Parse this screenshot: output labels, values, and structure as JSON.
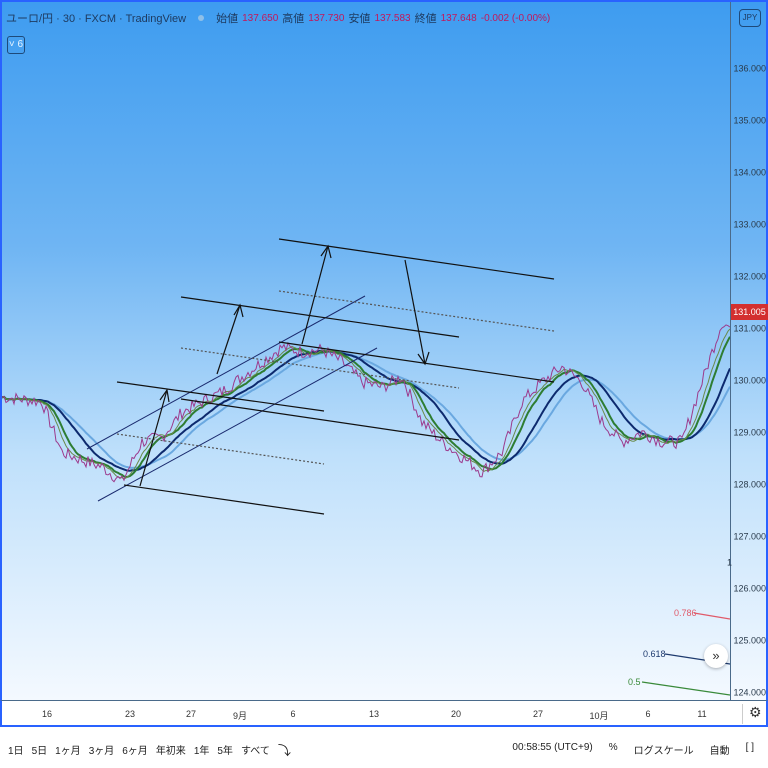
{
  "header": {
    "symbol": "ユーロ/円 · 30 · FXCM · TradingView",
    "open_label": "始値",
    "open": "137.650",
    "high_label": "高値",
    "high": "137.730",
    "low_label": "安値",
    "low": "137.583",
    "close_label": "終値",
    "close": "137.648",
    "change": "-0.002 (-0.00%)",
    "indicators_toggle": "˅ 6"
  },
  "price_axis": {
    "currency": "JPY",
    "ticks": [
      "136.000",
      "135.000",
      "134.000",
      "133.000",
      "132.000",
      "131.000",
      "130.000",
      "129.000",
      "128.000",
      "127.000",
      "126.000",
      "125.000",
      "124.000"
    ],
    "current_price": "131.005",
    "current_price_color": "#d32f2f",
    "marker": "1"
  },
  "time_axis": {
    "labels": [
      "16",
      "23",
      "27",
      "9月",
      "6",
      "13",
      "20",
      "27",
      "10月",
      "6",
      "11"
    ]
  },
  "fib_levels": [
    {
      "label": "0.786",
      "color": "#e05a6a"
    },
    {
      "label": "0.618",
      "color": "#1e3a6e"
    },
    {
      "label": "0.5",
      "color": "#3a8a3a"
    }
  ],
  "toolbar": {
    "ranges": [
      "1日",
      "5日",
      "1ヶ月",
      "3ヶ月",
      "6ヶ月",
      "年初来",
      "1年",
      "5年",
      "すべて"
    ],
    "goto_icon": "calendar-jump-icon",
    "time": "00:58:55 (UTC+9)",
    "percent": "%",
    "log": "ログスケール",
    "auto": "自動",
    "fullscreen_icon": "bracket-icon",
    "settings_icon": "gear-icon"
  },
  "chart_data": {
    "type": "line",
    "series": [
      {
        "values": [
          129.69,
          129.65,
          129.6,
          128.63,
          128.48,
          128.35,
          128.06,
          128.83,
          128.92,
          129.4,
          129.6,
          129.79,
          130.08,
          130.37,
          130.65,
          130.56,
          130.6,
          130.37,
          129.98,
          129.88,
          130.08,
          129.21,
          128.83,
          128.54,
          128.25,
          128.63,
          129.6,
          129.98,
          130.27,
          129.98,
          129.21,
          128.83,
          129.02,
          128.83,
          128.83,
          129.98,
          131.13,
          131.005
        ]
      }
    ],
    "ylim": [
      123.8,
      137.2
    ],
    "colors": {
      "price": "#9c3a8c",
      "ma_fast": "#2e7d32",
      "ma_mid": "#0d2a6e",
      "ma_slow": "#6aa8e0"
    }
  }
}
